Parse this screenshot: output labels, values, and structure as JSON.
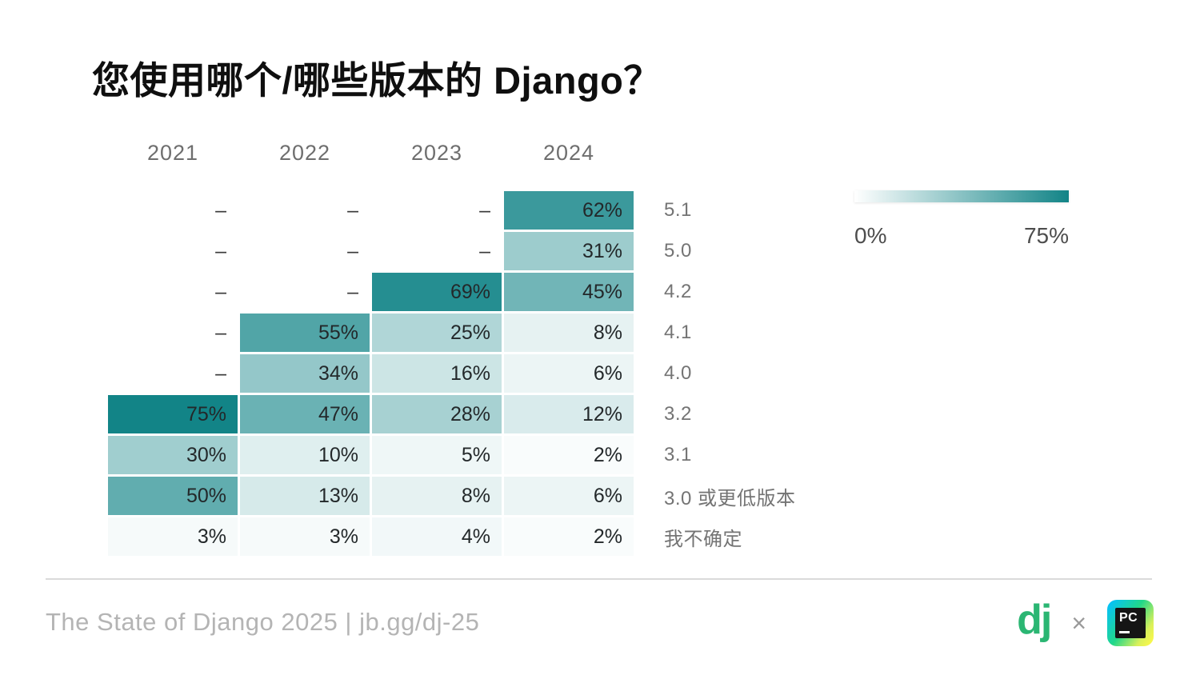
{
  "title": "您使用哪个/哪些版本的 Django？",
  "chart_data": {
    "type": "heatmap",
    "columns": [
      "2021",
      "2022",
      "2023",
      "2024"
    ],
    "rows": [
      {
        "label": "5.1",
        "values": [
          null,
          null,
          null,
          62
        ]
      },
      {
        "label": "5.0",
        "values": [
          null,
          null,
          null,
          31
        ]
      },
      {
        "label": "4.2",
        "values": [
          null,
          null,
          69,
          45
        ]
      },
      {
        "label": "4.1",
        "values": [
          null,
          55,
          25,
          8
        ]
      },
      {
        "label": "4.0",
        "values": [
          null,
          34,
          16,
          6
        ]
      },
      {
        "label": "3.2",
        "values": [
          75,
          47,
          28,
          12
        ]
      },
      {
        "label": "3.1",
        "values": [
          30,
          10,
          5,
          2
        ]
      },
      {
        "label": "3.0 或更低版本",
        "values": [
          50,
          13,
          8,
          6
        ]
      },
      {
        "label": "我不确定",
        "values": [
          3,
          3,
          4,
          2
        ]
      }
    ],
    "unit": "%",
    "empty_marker": "–",
    "legend": {
      "min_label": "0%",
      "max_label": "75%"
    },
    "scale": {
      "min_color": "#ffffff",
      "max_color": "#128487",
      "domain": [
        0,
        75
      ]
    }
  },
  "footer": {
    "source": "The State of Django 2025 | jb.gg/dj-25",
    "separator": "×",
    "django_logo_text": "dj",
    "pycharm_logo_text": "PC"
  }
}
